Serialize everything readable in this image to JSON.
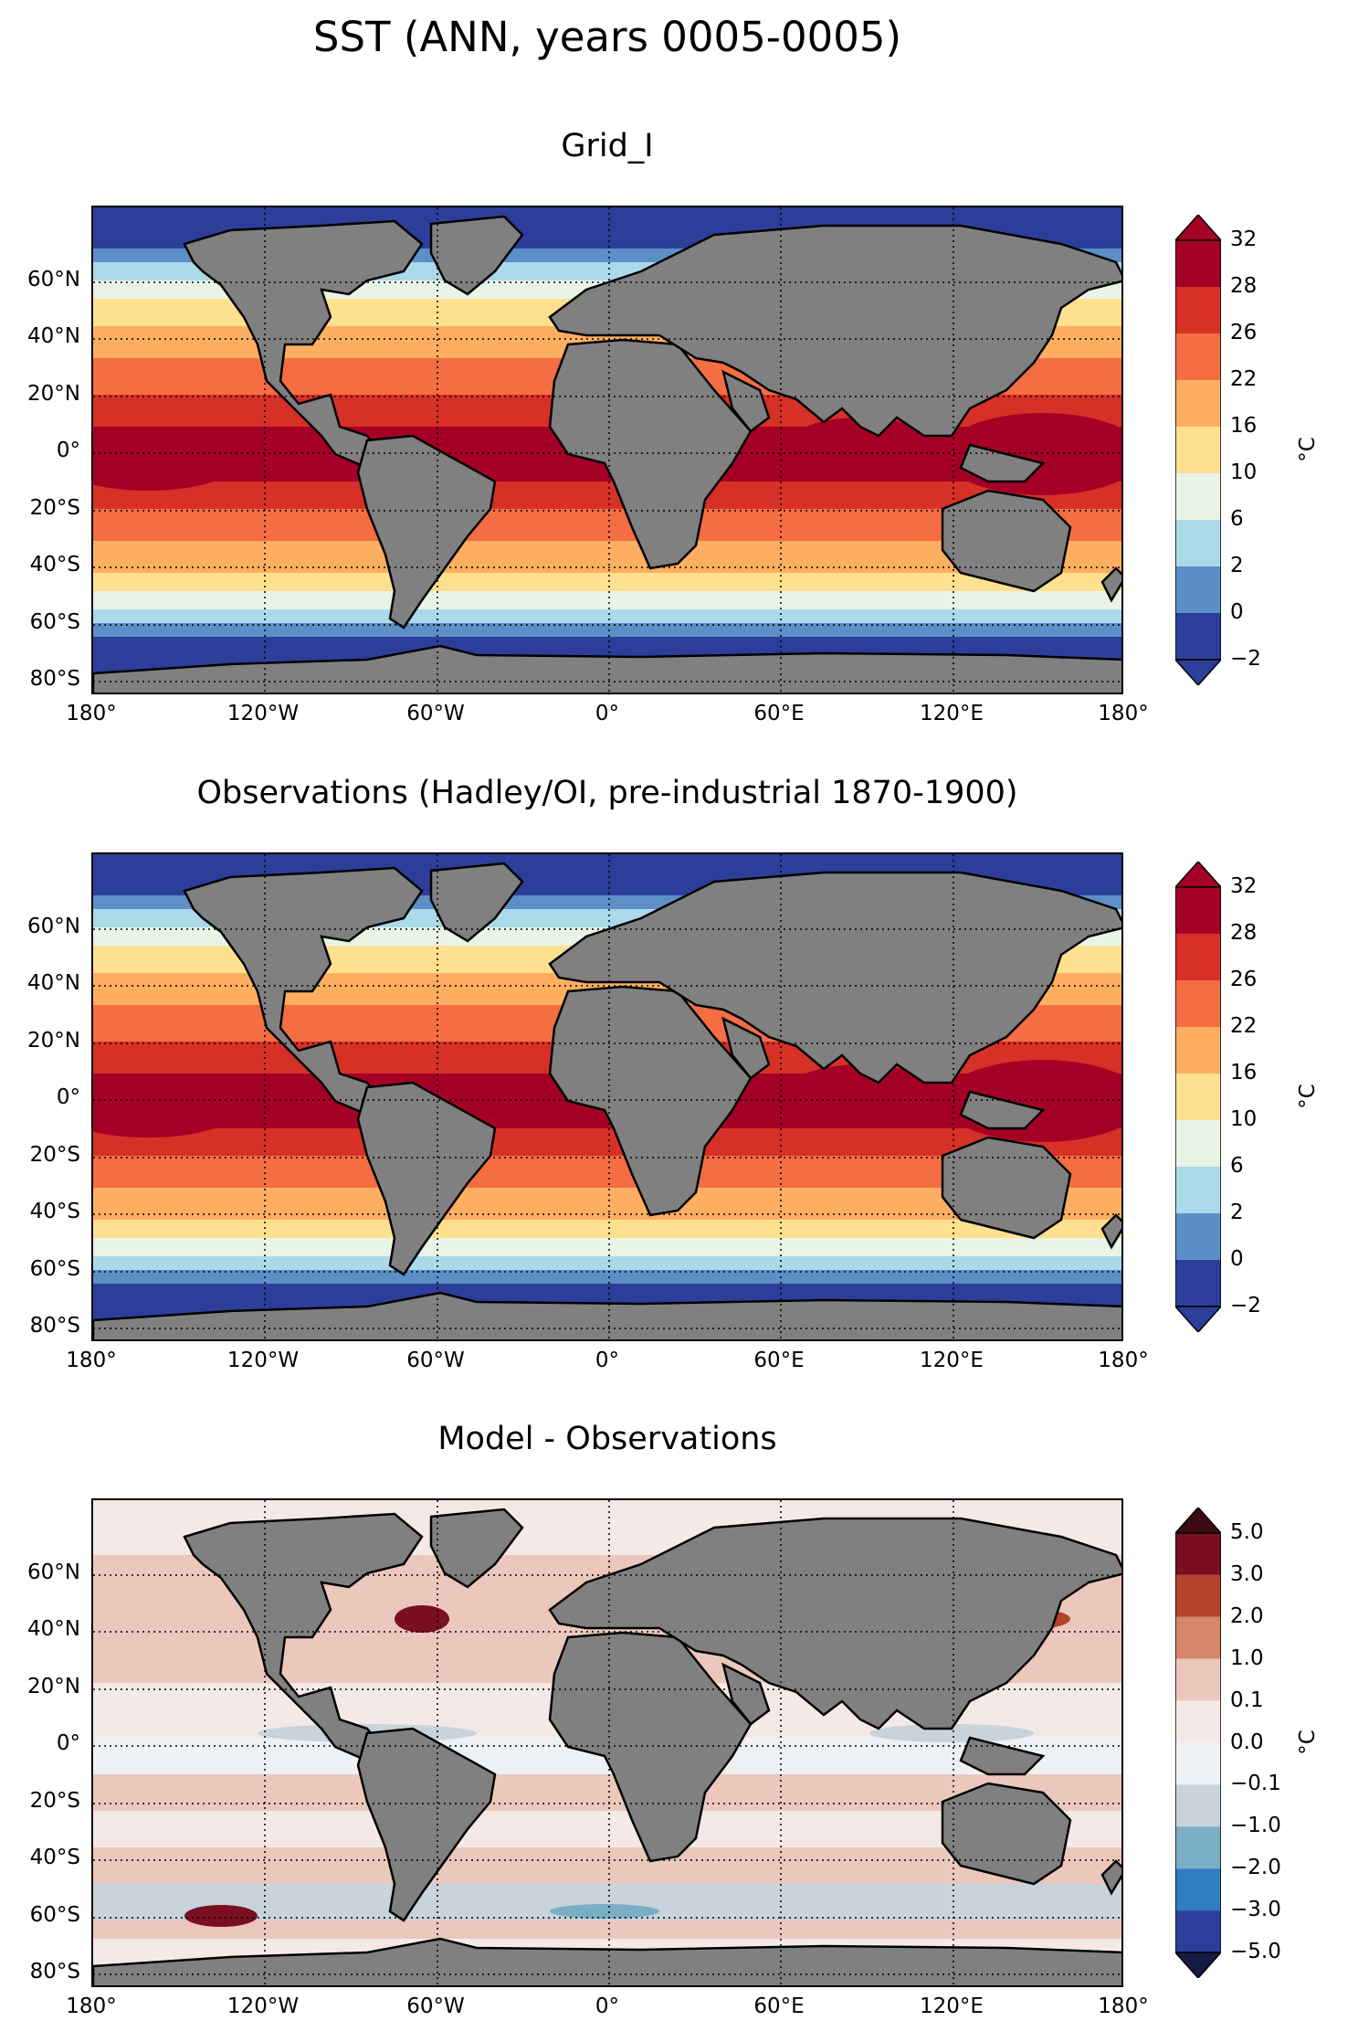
{
  "figure": {
    "title": "SST (ANN, years 0005-0005)"
  },
  "panels": [
    {
      "title": "Grid_I",
      "colorbar": {
        "ticks": [
          "32",
          "28",
          "26",
          "22",
          "16",
          "10",
          "6",
          "2",
          "0",
          "−2"
        ],
        "colors": [
          "#a50026",
          "#d73027",
          "#f46d43",
          "#fdae61",
          "#fee090",
          "#e9f4e6",
          "#abd9e9",
          "#5b8fc6",
          "#2c3e9a"
        ],
        "extend_top": "#a50026",
        "extend_bottom": "#2c3e9a",
        "unit": "°C"
      }
    },
    {
      "title": "Observations (Hadley/OI, pre-industrial 1870-1900)",
      "colorbar": {
        "ticks": [
          "32",
          "28",
          "26",
          "22",
          "16",
          "10",
          "6",
          "2",
          "0",
          "−2"
        ],
        "colors": [
          "#a50026",
          "#d73027",
          "#f46d43",
          "#fdae61",
          "#fee090",
          "#e9f4e6",
          "#abd9e9",
          "#5b8fc6",
          "#2c3e9a"
        ],
        "extend_top": "#a50026",
        "extend_bottom": "#2c3e9a",
        "unit": "°C"
      }
    },
    {
      "title": "Model - Observations",
      "colorbar": {
        "ticks": [
          "5.0",
          "3.0",
          "2.0",
          "1.0",
          "0.1",
          "0.0",
          "−0.1",
          "−1.0",
          "−2.0",
          "−3.0",
          "−5.0"
        ],
        "colors": [
          "#7a0f22",
          "#b5432b",
          "#d6876b",
          "#ecc7bb",
          "#f5e9e8",
          "#eef1f4",
          "#c8d3db",
          "#7aaec4",
          "#2f7ec0",
          "#2b3f9a"
        ],
        "extend_top": "#3b0a14",
        "extend_bottom": "#141b45",
        "unit": "°C"
      }
    }
  ],
  "axes": {
    "lat_labels": [
      "60°N",
      "40°N",
      "20°N",
      "0°",
      "20°S",
      "40°S",
      "60°S",
      "80°S"
    ],
    "lon_labels": [
      "180°",
      "120°W",
      "60°W",
      "0°",
      "60°E",
      "120°E",
      "180°"
    ]
  },
  "land_color": "#808080"
}
